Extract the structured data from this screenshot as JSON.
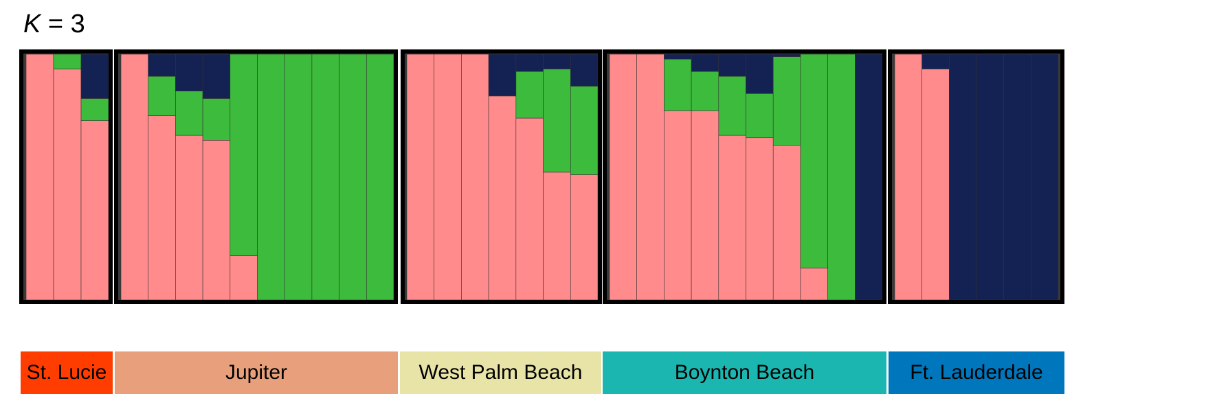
{
  "title": {
    "var": "K",
    "rest": " = 3"
  },
  "colors": {
    "cluster_1": "#FF8B8C",
    "cluster_2": "#3DBB3C",
    "cluster_3": "#142253",
    "frame": "#000000",
    "panel_bg": "#3A3A3A"
  },
  "chart_data": {
    "type": "bar",
    "stacked": true,
    "normalized": true,
    "ylim": [
      0,
      1
    ],
    "series": [
      {
        "values": [
          1.0,
          0.94,
          0.73,
          1.0,
          0.75,
          0.67,
          0.65,
          0.18,
          0.0,
          0.0,
          0.0,
          0.0,
          0.0,
          1.0,
          1.0,
          1.0,
          0.83,
          0.74,
          0.52,
          0.51,
          1.0,
          1.0,
          0.77,
          0.77,
          0.67,
          0.66,
          0.63,
          0.13,
          0.0,
          0.0,
          1.0,
          0.94,
          0.0,
          0.0,
          0.0,
          0.0
        ]
      },
      {
        "values": [
          0.0,
          0.06,
          0.09,
          0.0,
          0.16,
          0.18,
          0.17,
          0.82,
          1.0,
          1.0,
          1.0,
          1.0,
          1.0,
          0.0,
          0.0,
          0.0,
          0.0,
          0.19,
          0.42,
          0.36,
          0.0,
          0.0,
          0.21,
          0.16,
          0.24,
          0.18,
          0.36,
          0.87,
          1.0,
          0.0,
          0.0,
          0.0,
          0.0,
          0.0,
          0.0,
          0.0
        ]
      },
      {
        "values": [
          0.0,
          0.0,
          0.18,
          0.0,
          0.09,
          0.15,
          0.18,
          0.0,
          0.0,
          0.0,
          0.0,
          0.0,
          0.0,
          0.0,
          0.0,
          0.0,
          0.17,
          0.07,
          0.06,
          0.13,
          0.0,
          0.0,
          0.02,
          0.07,
          0.09,
          0.16,
          0.01,
          0.0,
          0.0,
          1.0,
          0.0,
          0.06,
          1.0,
          1.0,
          1.0,
          1.0
        ]
      }
    ],
    "groups": [
      {
        "label": "St. Lucie",
        "count": 3,
        "color": "#FF3D00"
      },
      {
        "label": "Jupiter",
        "count": 10,
        "color": "#E8A07C"
      },
      {
        "label": "West Palm Beach",
        "count": 7,
        "color": "#E8E4A8"
      },
      {
        "label": "Boynton Beach",
        "count": 10,
        "color": "#1BB6B0"
      },
      {
        "label": "Ft. Lauderdale",
        "count": 6,
        "color": "#0077BD"
      }
    ]
  }
}
